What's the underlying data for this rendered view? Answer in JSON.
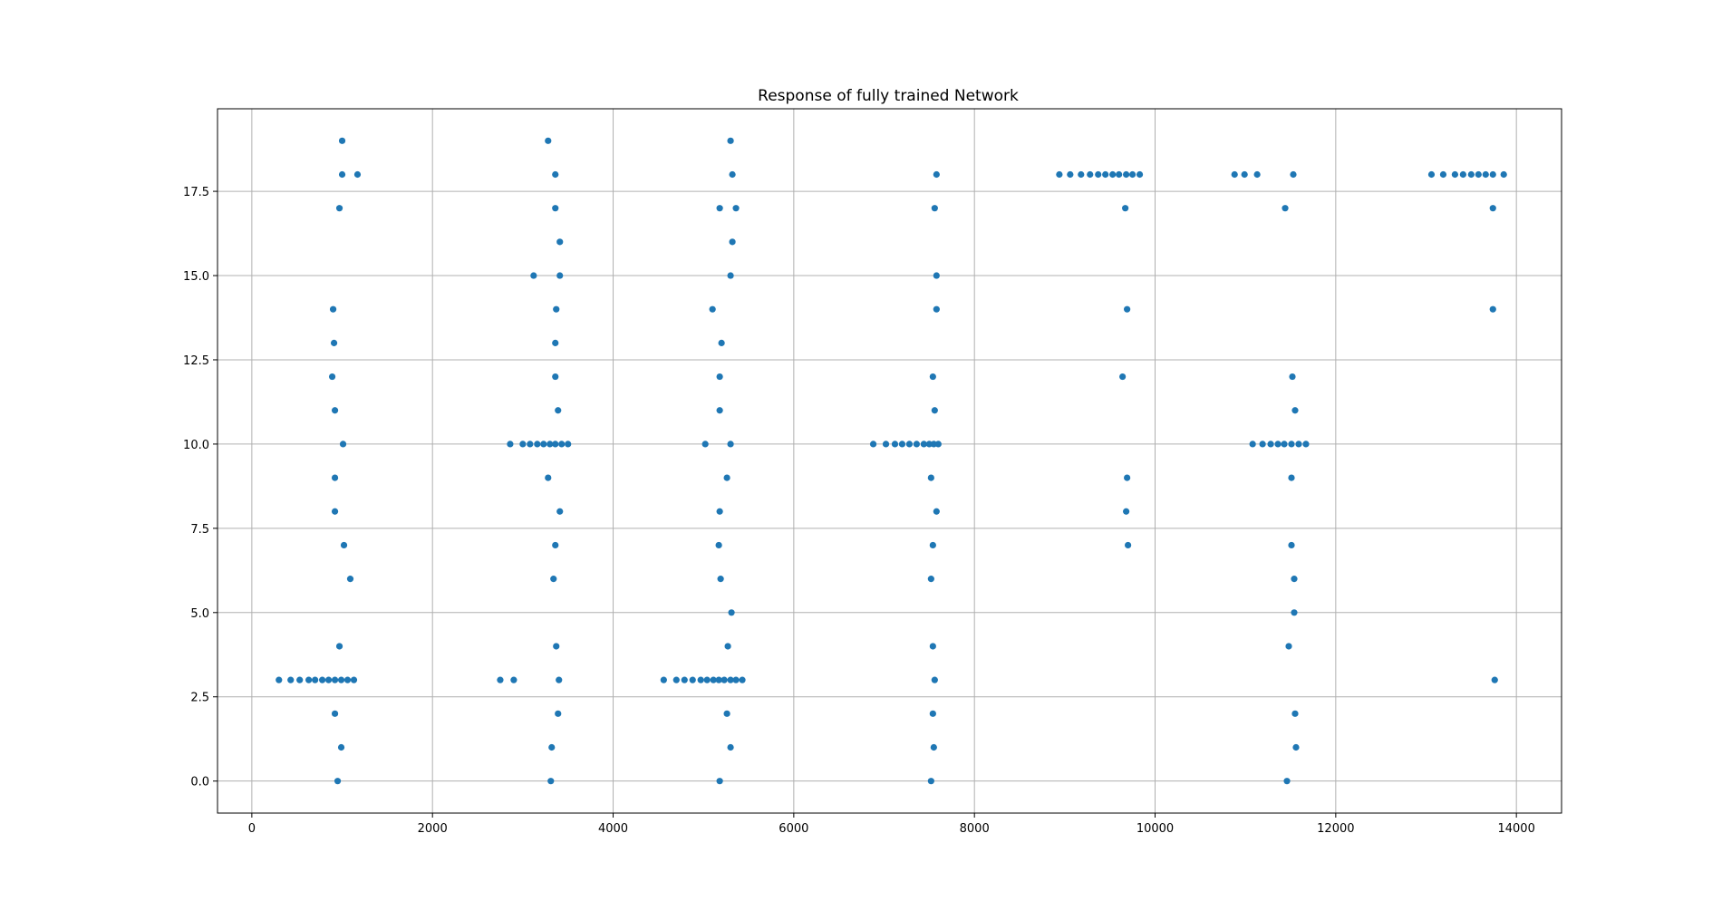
{
  "chart_data": {
    "type": "scatter",
    "title": "Response of fully trained Network",
    "xlabel": "",
    "ylabel": "",
    "xlim": [
      -380,
      14500
    ],
    "ylim": [
      -0.95,
      19.95
    ],
    "x_ticks": [
      0,
      2000,
      4000,
      6000,
      8000,
      10000,
      12000,
      14000
    ],
    "x_tick_labels": [
      "0",
      "2000",
      "4000",
      "6000",
      "8000",
      "10000",
      "12000",
      "14000"
    ],
    "y_ticks": [
      0,
      2.5,
      5,
      7.5,
      10,
      12.5,
      15,
      17.5
    ],
    "y_tick_labels": [
      "0.0",
      "2.5",
      "5.0",
      "7.5",
      "10.0",
      "12.5",
      "15.0",
      "17.5"
    ],
    "grid": true,
    "legend": "none",
    "marker_color": "#1f77b4",
    "series": [
      {
        "points": [
          [
            300,
            3
          ],
          [
            430,
            3
          ],
          [
            530,
            3
          ],
          [
            630,
            3
          ],
          [
            700,
            3
          ],
          [
            780,
            3
          ],
          [
            850,
            3
          ],
          [
            920,
            3
          ],
          [
            990,
            3
          ],
          [
            1060,
            3
          ],
          [
            1130,
            3
          ],
          [
            920,
            2
          ],
          [
            990,
            1
          ],
          [
            950,
            0
          ],
          [
            970,
            4
          ],
          [
            1090,
            6
          ],
          [
            1020,
            7
          ],
          [
            920,
            8
          ],
          [
            920,
            9
          ],
          [
            1010,
            10
          ],
          [
            920,
            11
          ],
          [
            890,
            12
          ],
          [
            910,
            13
          ],
          [
            900,
            14
          ],
          [
            970,
            17
          ],
          [
            1000,
            18
          ],
          [
            1170,
            18
          ],
          [
            1000,
            19
          ],
          [
            2750,
            3
          ],
          [
            2900,
            3
          ],
          [
            3400,
            3
          ],
          [
            3390,
            2
          ],
          [
            3320,
            1
          ],
          [
            3310,
            0
          ],
          [
            3370,
            4
          ],
          [
            3340,
            6
          ],
          [
            3360,
            7
          ],
          [
            3410,
            8
          ],
          [
            3280,
            9
          ],
          [
            2860,
            10
          ],
          [
            3000,
            10
          ],
          [
            3080,
            10
          ],
          [
            3160,
            10
          ],
          [
            3230,
            10
          ],
          [
            3300,
            10
          ],
          [
            3360,
            10
          ],
          [
            3430,
            10
          ],
          [
            3500,
            10
          ],
          [
            3390,
            11
          ],
          [
            3360,
            12
          ],
          [
            3360,
            13
          ],
          [
            3370,
            14
          ],
          [
            3120,
            15
          ],
          [
            3410,
            15
          ],
          [
            3410,
            16
          ],
          [
            3360,
            17
          ],
          [
            3360,
            18
          ],
          [
            3280,
            19
          ],
          [
            4560,
            3
          ],
          [
            4700,
            3
          ],
          [
            4790,
            3
          ],
          [
            4880,
            3
          ],
          [
            4970,
            3
          ],
          [
            5040,
            3
          ],
          [
            5110,
            3
          ],
          [
            5170,
            3
          ],
          [
            5230,
            3
          ],
          [
            5300,
            3
          ],
          [
            5360,
            3
          ],
          [
            5430,
            3
          ],
          [
            5260,
            2
          ],
          [
            5300,
            1
          ],
          [
            5180,
            0
          ],
          [
            5270,
            4
          ],
          [
            5310,
            5
          ],
          [
            5190,
            6
          ],
          [
            5170,
            7
          ],
          [
            5180,
            8
          ],
          [
            5260,
            9
          ],
          [
            5020,
            10
          ],
          [
            5300,
            10
          ],
          [
            5180,
            11
          ],
          [
            5180,
            12
          ],
          [
            5200,
            13
          ],
          [
            5100,
            14
          ],
          [
            5300,
            15
          ],
          [
            5320,
            16
          ],
          [
            5180,
            17
          ],
          [
            5360,
            17
          ],
          [
            5320,
            18
          ],
          [
            5300,
            19
          ],
          [
            7520,
            0
          ],
          [
            7550,
            1
          ],
          [
            7540,
            2
          ],
          [
            7560,
            3
          ],
          [
            7540,
            4
          ],
          [
            7520,
            6
          ],
          [
            7540,
            7
          ],
          [
            7580,
            8
          ],
          [
            7520,
            9
          ],
          [
            6880,
            10
          ],
          [
            7020,
            10
          ],
          [
            7120,
            10
          ],
          [
            7200,
            10
          ],
          [
            7280,
            10
          ],
          [
            7360,
            10
          ],
          [
            7440,
            10
          ],
          [
            7500,
            10
          ],
          [
            7550,
            10
          ],
          [
            7600,
            10
          ],
          [
            7560,
            11
          ],
          [
            7540,
            12
          ],
          [
            7580,
            14
          ],
          [
            7580,
            15
          ],
          [
            7560,
            17
          ],
          [
            7580,
            18
          ],
          [
            9700,
            7
          ],
          [
            9680,
            8
          ],
          [
            9690,
            9
          ],
          [
            9640,
            12
          ],
          [
            9690,
            14
          ],
          [
            9670,
            17
          ],
          [
            8940,
            18
          ],
          [
            9060,
            18
          ],
          [
            9180,
            18
          ],
          [
            9280,
            18
          ],
          [
            9370,
            18
          ],
          [
            9450,
            18
          ],
          [
            9530,
            18
          ],
          [
            9600,
            18
          ],
          [
            9680,
            18
          ],
          [
            9750,
            18
          ],
          [
            9830,
            18
          ],
          [
            11460,
            0
          ],
          [
            11560,
            1
          ],
          [
            11550,
            2
          ],
          [
            11480,
            4
          ],
          [
            11540,
            5
          ],
          [
            11540,
            6
          ],
          [
            11510,
            7
          ],
          [
            11510,
            9
          ],
          [
            11080,
            10
          ],
          [
            11190,
            10
          ],
          [
            11280,
            10
          ],
          [
            11360,
            10
          ],
          [
            11430,
            10
          ],
          [
            11510,
            10
          ],
          [
            11590,
            10
          ],
          [
            11670,
            10
          ],
          [
            11550,
            11
          ],
          [
            11520,
            12
          ],
          [
            11440,
            17
          ],
          [
            10880,
            18
          ],
          [
            10990,
            18
          ],
          [
            11130,
            18
          ],
          [
            11530,
            18
          ],
          [
            13760,
            3
          ],
          [
            13740,
            14
          ],
          [
            13740,
            17
          ],
          [
            13060,
            18
          ],
          [
            13190,
            18
          ],
          [
            13320,
            18
          ],
          [
            13410,
            18
          ],
          [
            13500,
            18
          ],
          [
            13580,
            18
          ],
          [
            13660,
            18
          ],
          [
            13740,
            18
          ],
          [
            13860,
            18
          ]
        ]
      }
    ]
  }
}
